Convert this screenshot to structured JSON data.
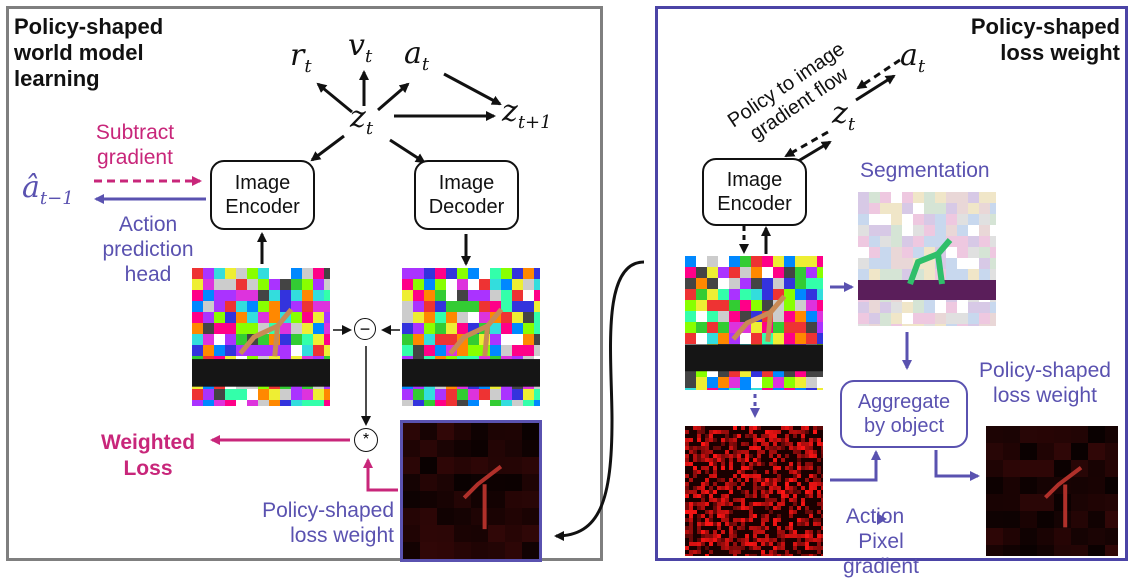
{
  "colors": {
    "left_border": "#7f7f7f",
    "right_border": "#4b44a6",
    "purple": "#5a52b0",
    "magenta": "#c8267a",
    "black": "#111111"
  },
  "left_panel": {
    "title_line1": "Policy-shaped",
    "title_line2": "world model",
    "title_line3": "learning",
    "latent_symbols": {
      "r": "r",
      "r_sub": "t",
      "v": "v",
      "v_sub": "t",
      "a": "a",
      "a_sub": "t",
      "z": "z",
      "z_sub": "t",
      "z_next": "z",
      "z_next_sub": "t+1"
    },
    "subtract_gradient_line1": "Subtract",
    "subtract_gradient_line2": "gradient",
    "a_hat": "â",
    "a_hat_sub": "t−1",
    "action_head_line1": "Action",
    "action_head_line2": "prediction",
    "action_head_line3": "head",
    "encoder_line1": "Image",
    "encoder_line2": "Encoder",
    "decoder_line1": "Image",
    "decoder_line2": "Decoder",
    "minus_symbol": "−",
    "star_symbol": "*",
    "weighted_loss_line1": "Weighted",
    "weighted_loss_line2": "Loss",
    "loss_weight_line1": "Policy-shaped",
    "loss_weight_line2": "loss weight"
  },
  "right_panel": {
    "title_line1": "Policy-shaped",
    "title_line2": "loss weight",
    "a_symbol": "a",
    "a_sub": "t",
    "z_symbol": "z",
    "z_sub": "t",
    "gradient_flow_line1": "Policy to image",
    "gradient_flow_line2": "gradient flow",
    "encoder_line1": "Image",
    "encoder_line2": "Encoder",
    "segmentation": "Segmentation",
    "aggregate_line1": "Aggregate",
    "aggregate_line2": "by object",
    "loss_weight_line1": "Policy-shaped",
    "loss_weight_line2": "loss weight",
    "action_pixel_a": "Action",
    "action_pixel_b": "Pixel",
    "action_pixel_line2": "gradient"
  }
}
